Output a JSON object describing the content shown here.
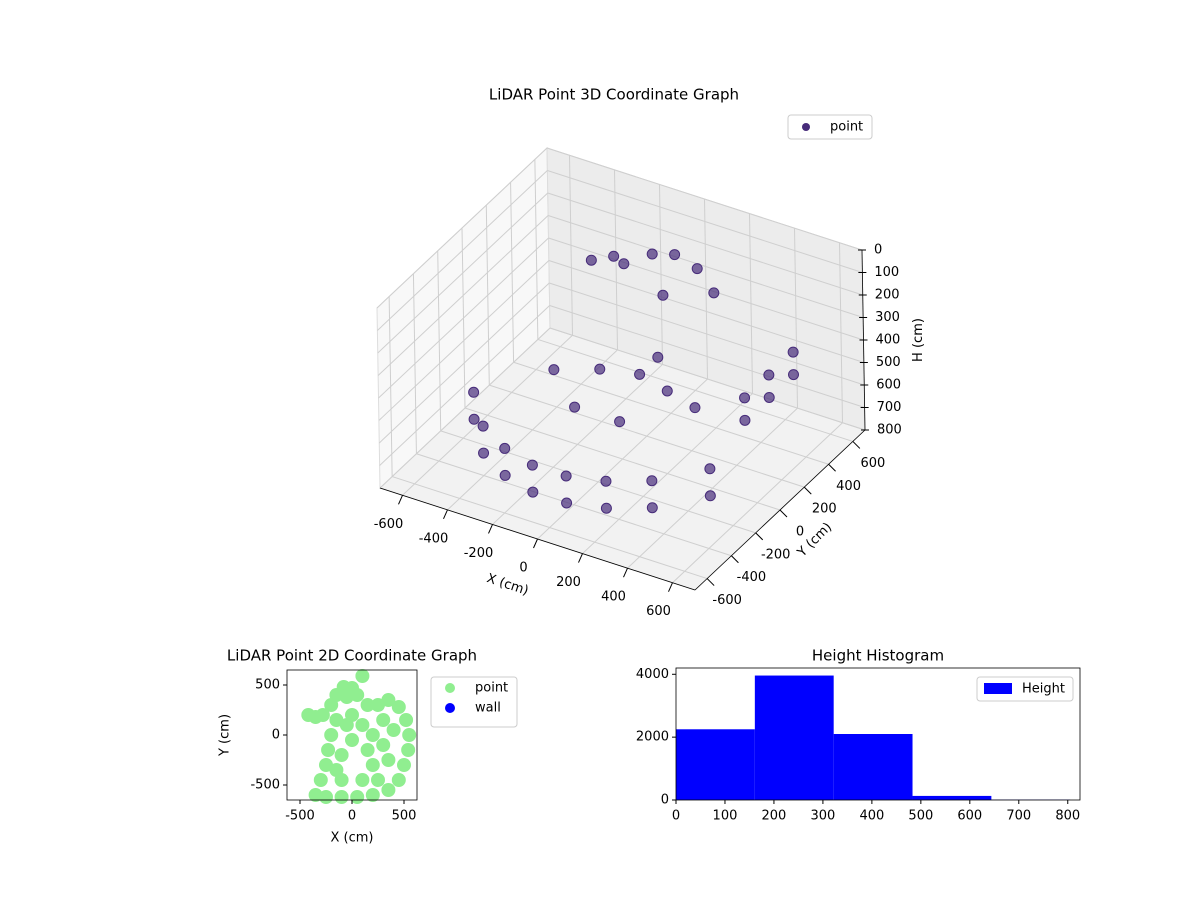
{
  "chart_data": [
    {
      "type": "scatter3d",
      "title": "LiDAR Point 3D Coordinate Graph",
      "xlabel": "X (cm)",
      "ylabel": "Y (cm)",
      "zlabel": "H (cm)",
      "xlim": [
        -700,
        700
      ],
      "ylim": [
        -700,
        700
      ],
      "zlim": [
        0,
        800
      ],
      "z_inverted": true,
      "xticks": [
        -600,
        -400,
        -200,
        0,
        200,
        400,
        600
      ],
      "yticks": [
        -600,
        -400,
        -200,
        0,
        200,
        400,
        600
      ],
      "zticks": [
        0,
        100,
        200,
        300,
        400,
        500,
        600,
        700,
        800
      ],
      "legend": "upper right",
      "grid": true,
      "series": [
        {
          "name": "point",
          "color": "#472c7a",
          "x": [
            -550,
            -400,
            -250,
            -100,
            50,
            200,
            350,
            500,
            -550,
            -400,
            -250,
            -100,
            50,
            200,
            350,
            500,
            550,
            550,
            550,
            550,
            550,
            550,
            -300,
            -150,
            0,
            150,
            300,
            -100,
            100,
            0,
            -200,
            -100,
            0,
            100,
            200,
            0,
            -300,
            -400
          ],
          "y": [
            -200,
            -400,
            -500,
            -550,
            -550,
            -500,
            -400,
            -200,
            -200,
            -400,
            -500,
            -550,
            -550,
            -500,
            -400,
            -200,
            0,
            200,
            400,
            0,
            200,
            400,
            0,
            100,
            150,
            100,
            50,
            -200,
            -200,
            300,
            400,
            450,
            450,
            450,
            400,
            350,
            500,
            500
          ],
          "z": [
            700,
            700,
            700,
            700,
            700,
            700,
            700,
            700,
            580,
            580,
            580,
            580,
            580,
            580,
            580,
            580,
            450,
            450,
            450,
            350,
            350,
            350,
            500,
            500,
            500,
            500,
            500,
            500,
            500,
            500,
            200,
            150,
            120,
            150,
            200,
            250,
            250,
            300
          ]
        }
      ]
    },
    {
      "type": "scatter",
      "title": "LiDAR Point 2D Coordinate Graph",
      "xlabel": "X (cm)",
      "ylabel": "Y (cm)",
      "xlim": [
        -625,
        625
      ],
      "ylim": [
        -650,
        650
      ],
      "xticks": [
        -500,
        0,
        500
      ],
      "yticks": [
        -500,
        0,
        500
      ],
      "legend": "outside upper right",
      "series": [
        {
          "name": "point",
          "color": "#90ee90",
          "x": [
            -420,
            -350,
            -280,
            -200,
            -150,
            -80,
            0,
            -50,
            50,
            100,
            150,
            250,
            350,
            450,
            520,
            550,
            540,
            500,
            450,
            350,
            200,
            50,
            -100,
            -250,
            -350,
            -300,
            -250,
            -230,
            -200,
            -150,
            0,
            100,
            200,
            300,
            350,
            200,
            100,
            -100,
            -100,
            0,
            150,
            -50,
            300,
            400,
            -150,
            250
          ],
          "y": [
            200,
            180,
            200,
            300,
            400,
            480,
            470,
            380,
            400,
            590,
            300,
            300,
            350,
            280,
            150,
            0,
            -150,
            -300,
            -450,
            -550,
            -600,
            -620,
            -620,
            -620,
            -600,
            -450,
            -300,
            -150,
            0,
            150,
            200,
            100,
            0,
            -100,
            -250,
            -300,
            -450,
            -450,
            -200,
            -50,
            -150,
            100,
            150,
            50,
            -350,
            -450
          ]
        },
        {
          "name": "wall",
          "color": "#0000ff",
          "x": [],
          "y": []
        }
      ]
    },
    {
      "type": "histogram",
      "title": "Height Histogram",
      "name": "Height",
      "color": "#0000ff",
      "bins": [
        0,
        161,
        322,
        483,
        644,
        805
      ],
      "counts": [
        2250,
        3960,
        2100,
        130,
        10
      ],
      "xlim": [
        0,
        825
      ],
      "ylim": [
        0,
        4200
      ],
      "xticks": [
        0,
        100,
        200,
        300,
        400,
        500,
        600,
        700,
        800
      ],
      "yticks": [
        0,
        2000,
        4000
      ],
      "legend": "upper right"
    }
  ]
}
